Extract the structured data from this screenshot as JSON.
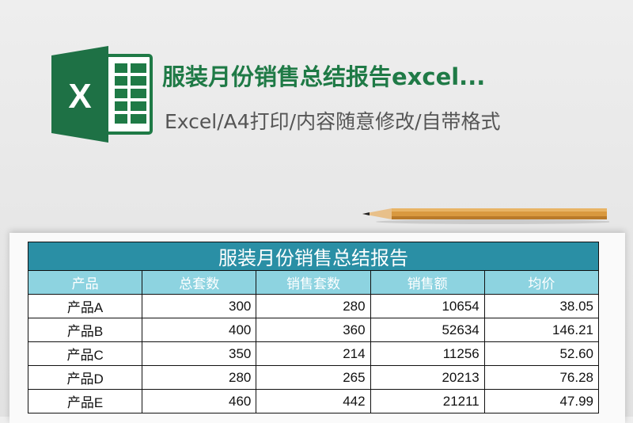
{
  "header": {
    "title": "服装月份销售总结报告excel...",
    "subtitle": "Excel/A4打印/内容随意修改/自带格式",
    "logo_text": "X",
    "brand_color": "#1f7a46"
  },
  "sheet": {
    "title": "服装月份销售总结报告",
    "columns": [
      "产品",
      "总套数",
      "销售套数",
      "销售额",
      "均价"
    ],
    "rows": [
      [
        "产品A",
        "300",
        "280",
        "10654",
        "38.05"
      ],
      [
        "产品B",
        "400",
        "360",
        "52634",
        "146.21"
      ],
      [
        "产品C",
        "350",
        "214",
        "11256",
        "52.60"
      ],
      [
        "产品D",
        "280",
        "265",
        "20213",
        "76.28"
      ],
      [
        "产品E",
        "460",
        "442",
        "21211",
        "47.99"
      ]
    ],
    "title_color": "#2a8fa5",
    "header_color": "#8dd3e0"
  }
}
